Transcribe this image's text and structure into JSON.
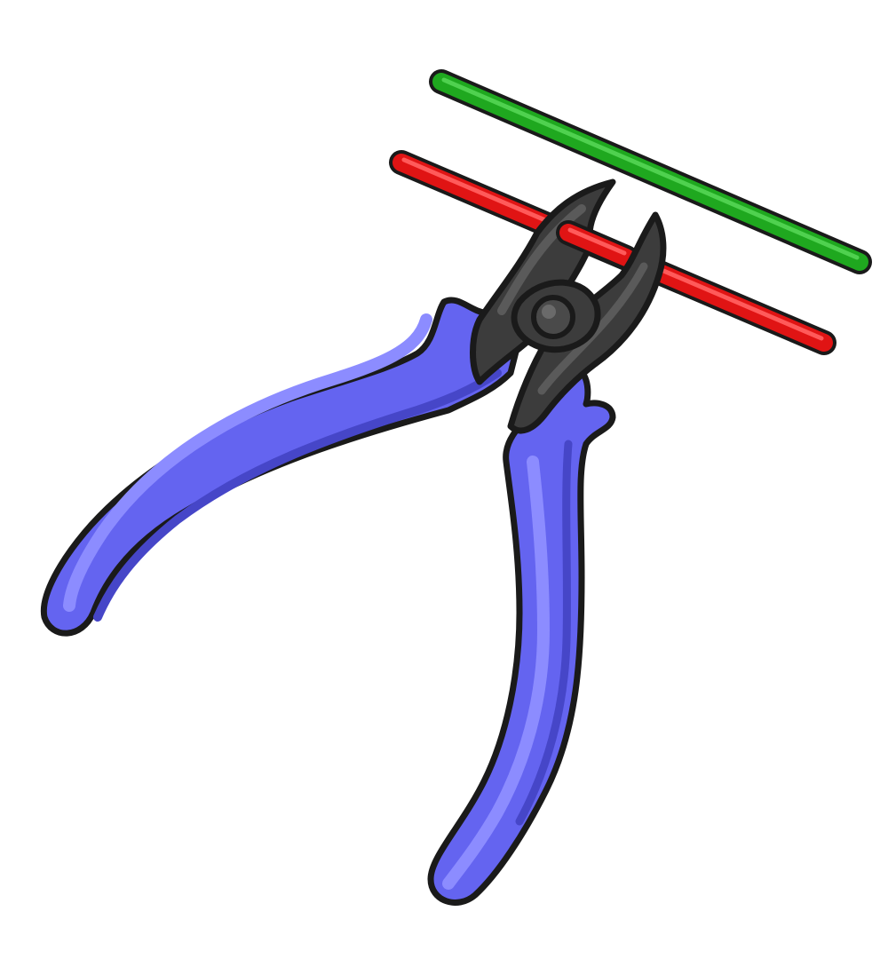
{
  "scene": {
    "subject": "diagonal-cutter-pliers-icon",
    "background_color": "#ffffff",
    "outline_color": "#1a1a1a",
    "wires": [
      {
        "name": "green-wire",
        "color": "#1fa81f",
        "highlight": "#4fd14f"
      },
      {
        "name": "red-wire",
        "color": "#e01414",
        "highlight": "#ff5a5a"
      }
    ],
    "handle_color": "#6464f0",
    "handle_highlight": "#8c8cff",
    "handle_shadow": "#4646c8",
    "jaw_color": "#3c3c3c",
    "jaw_highlight": "#5a5a5a"
  }
}
